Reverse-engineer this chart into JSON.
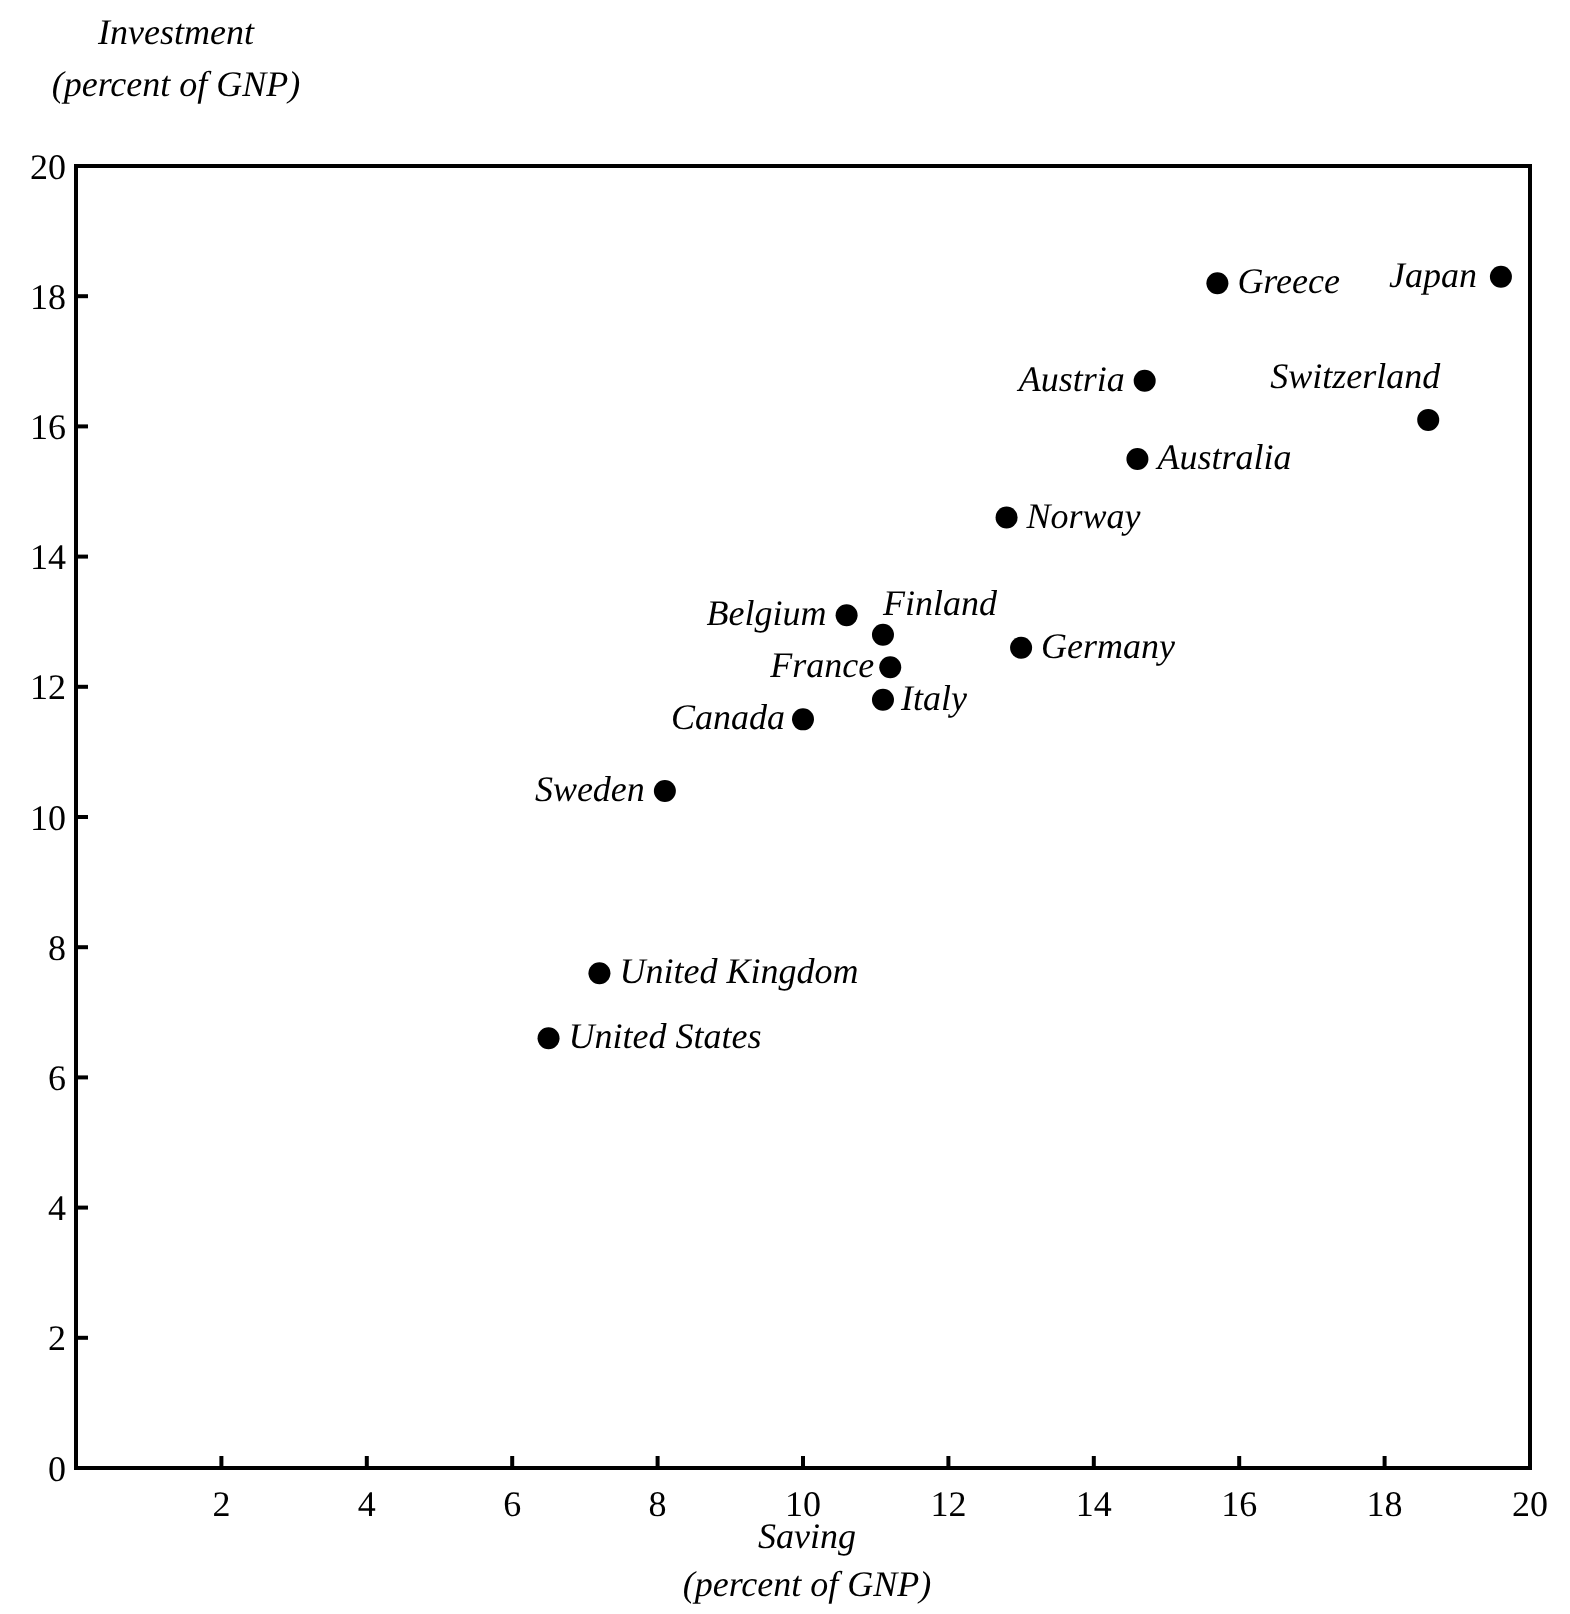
{
  "chart_data": {
    "type": "scatter",
    "xlabel": "Saving\n(percent of GNP)",
    "ylabel": "Investment\n(percent of GNP)",
    "x": [
      19.6,
      15.7,
      14.7,
      18.6,
      14.6,
      12.8,
      10.6,
      11.1,
      11.2,
      13.0,
      11.1,
      10.0,
      8.1,
      7.2,
      6.5
    ],
    "values": [
      18.3,
      18.2,
      16.7,
      16.1,
      15.5,
      14.6,
      13.1,
      12.8,
      12.3,
      12.6,
      11.8,
      11.5,
      10.4,
      7.6,
      6.6
    ],
    "annotations": [
      {
        "text": "Japan",
        "x": 19.6,
        "y": 18.3
      },
      {
        "text": "Greece",
        "x": 15.7,
        "y": 18.2
      },
      {
        "text": "Austria",
        "x": 14.7,
        "y": 16.7
      },
      {
        "text": "Switzerland",
        "x": 18.6,
        "y": 16.1
      },
      {
        "text": "Australia",
        "x": 14.6,
        "y": 15.5
      },
      {
        "text": "Norway",
        "x": 12.8,
        "y": 14.6
      },
      {
        "text": "Belgium",
        "x": 10.6,
        "y": 13.1
      },
      {
        "text": "Finland",
        "x": 11.1,
        "y": 12.8
      },
      {
        "text": "France",
        "x": 11.2,
        "y": 12.3
      },
      {
        "text": "Germany",
        "x": 13.0,
        "y": 12.6
      },
      {
        "text": "Italy",
        "x": 11.1,
        "y": 11.8
      },
      {
        "text": "Canada",
        "x": 10.0,
        "y": 11.5
      },
      {
        "text": "Sweden",
        "x": 8.1,
        "y": 10.4
      },
      {
        "text": "United Kingdom",
        "x": 7.2,
        "y": 7.6
      },
      {
        "text": "United States",
        "x": 6.5,
        "y": 6.6
      }
    ],
    "color": "#000000",
    "marker": "circle",
    "xlim": [
      0,
      20
    ],
    "xticks": [
      2,
      4,
      6,
      8,
      10,
      12,
      14,
      16,
      18,
      20
    ],
    "ylim": [
      0,
      20
    ],
    "yticks": [
      0,
      2,
      4,
      6,
      8,
      10,
      12,
      14,
      16,
      18,
      20
    ],
    "grid": false
  }
}
